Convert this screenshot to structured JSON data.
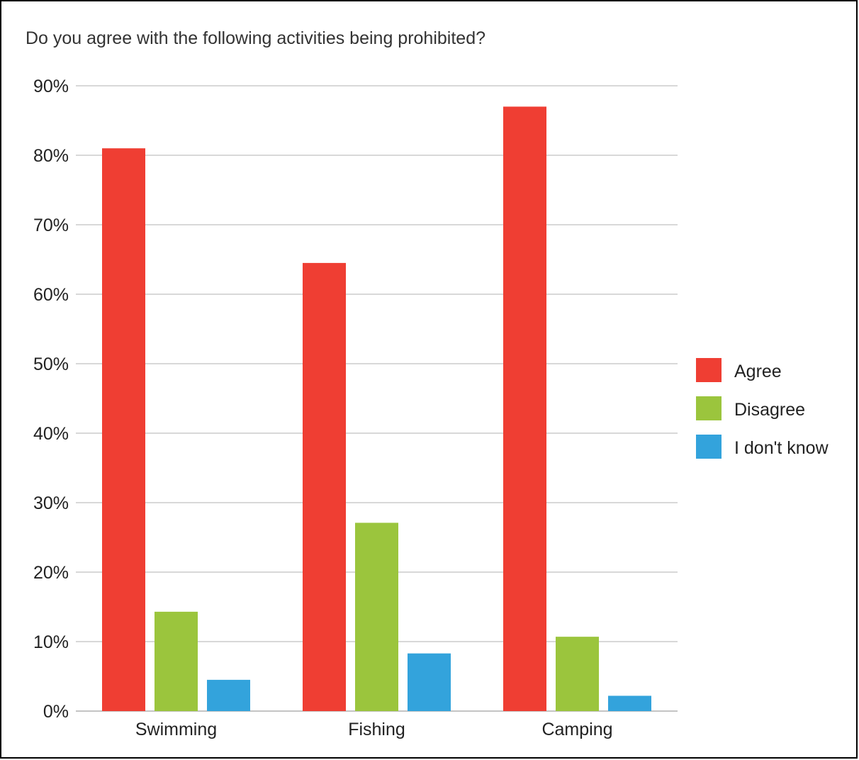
{
  "chart_data": {
    "type": "bar",
    "title": "Do you agree with the following activities being prohibited?",
    "xlabel": "",
    "ylabel": "",
    "categories": [
      "Swimming",
      "Fishing",
      "Camping"
    ],
    "series": [
      {
        "name": "Agree",
        "color": "#ef3e33",
        "values": [
          81,
          64.5,
          87
        ]
      },
      {
        "name": "Disagree",
        "color": "#9bc53d",
        "values": [
          14.3,
          27.1,
          10.7
        ]
      },
      {
        "name": "I don't know",
        "color": "#33a3dc",
        "values": [
          4.5,
          8.3,
          2.2
        ]
      }
    ],
    "ylim": [
      0,
      90
    ],
    "yticks": [
      0,
      10,
      20,
      30,
      40,
      50,
      60,
      70,
      80,
      90
    ],
    "ytick_labels": [
      "0%",
      "10%",
      "20%",
      "30%",
      "40%",
      "50%",
      "60%",
      "70%",
      "80%",
      "90%"
    ],
    "grid": true,
    "legend": "right"
  }
}
